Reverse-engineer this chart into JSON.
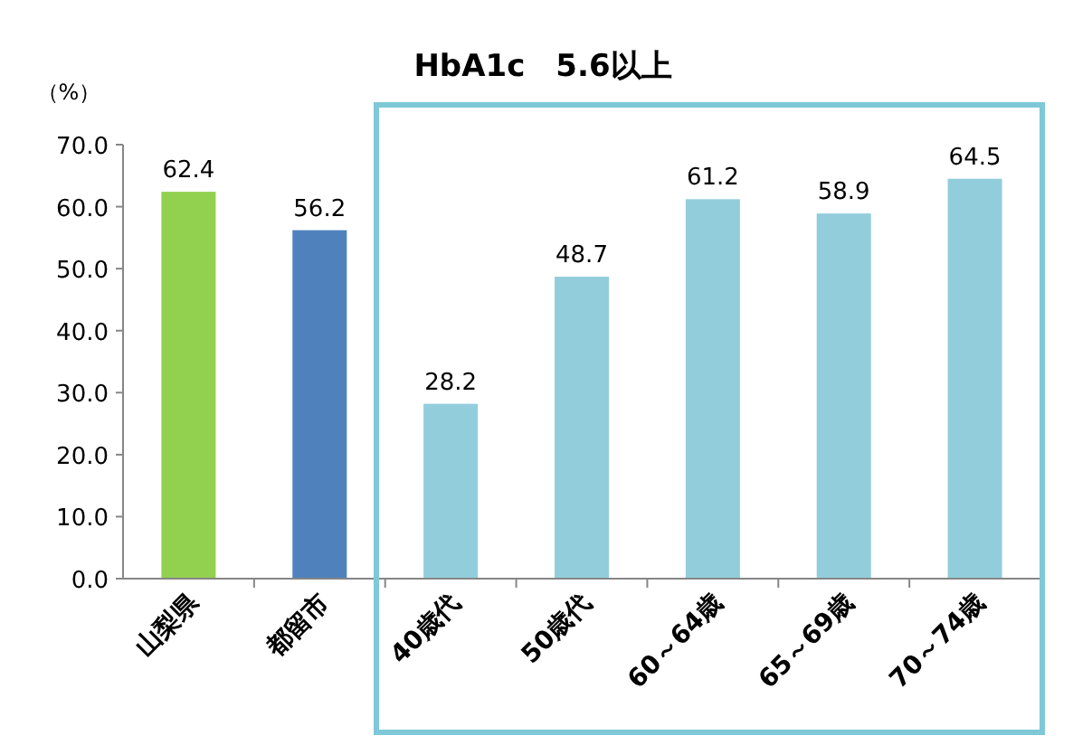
{
  "chart_data": {
    "type": "bar",
    "title": "HbA1c　5.6以上",
    "ylabel": "（%）",
    "categories": [
      "山梨県",
      "都留市",
      "40歳代",
      "50歳代",
      "60～64歳",
      "65～69歳",
      "70～74歳"
    ],
    "values": [
      62.4,
      56.2,
      28.2,
      48.7,
      61.2,
      58.9,
      64.5
    ],
    "colors": [
      "#92d050",
      "#4f81bd",
      "#92cddc",
      "#92cddc",
      "#92cddc",
      "#92cddc",
      "#92cddc"
    ],
    "data_labels": true,
    "ylim": [
      0,
      70
    ],
    "yticks": [
      {
        "value": 0,
        "label": "0.0"
      },
      {
        "value": 10,
        "label": "10.0"
      },
      {
        "value": 20,
        "label": "20.0"
      },
      {
        "value": 30,
        "label": "30.0"
      },
      {
        "value": 40,
        "label": "40.0"
      },
      {
        "value": 50,
        "label": "50.0"
      },
      {
        "value": 60,
        "label": "60.0"
      },
      {
        "value": 70,
        "label": "70.0"
      }
    ]
  }
}
